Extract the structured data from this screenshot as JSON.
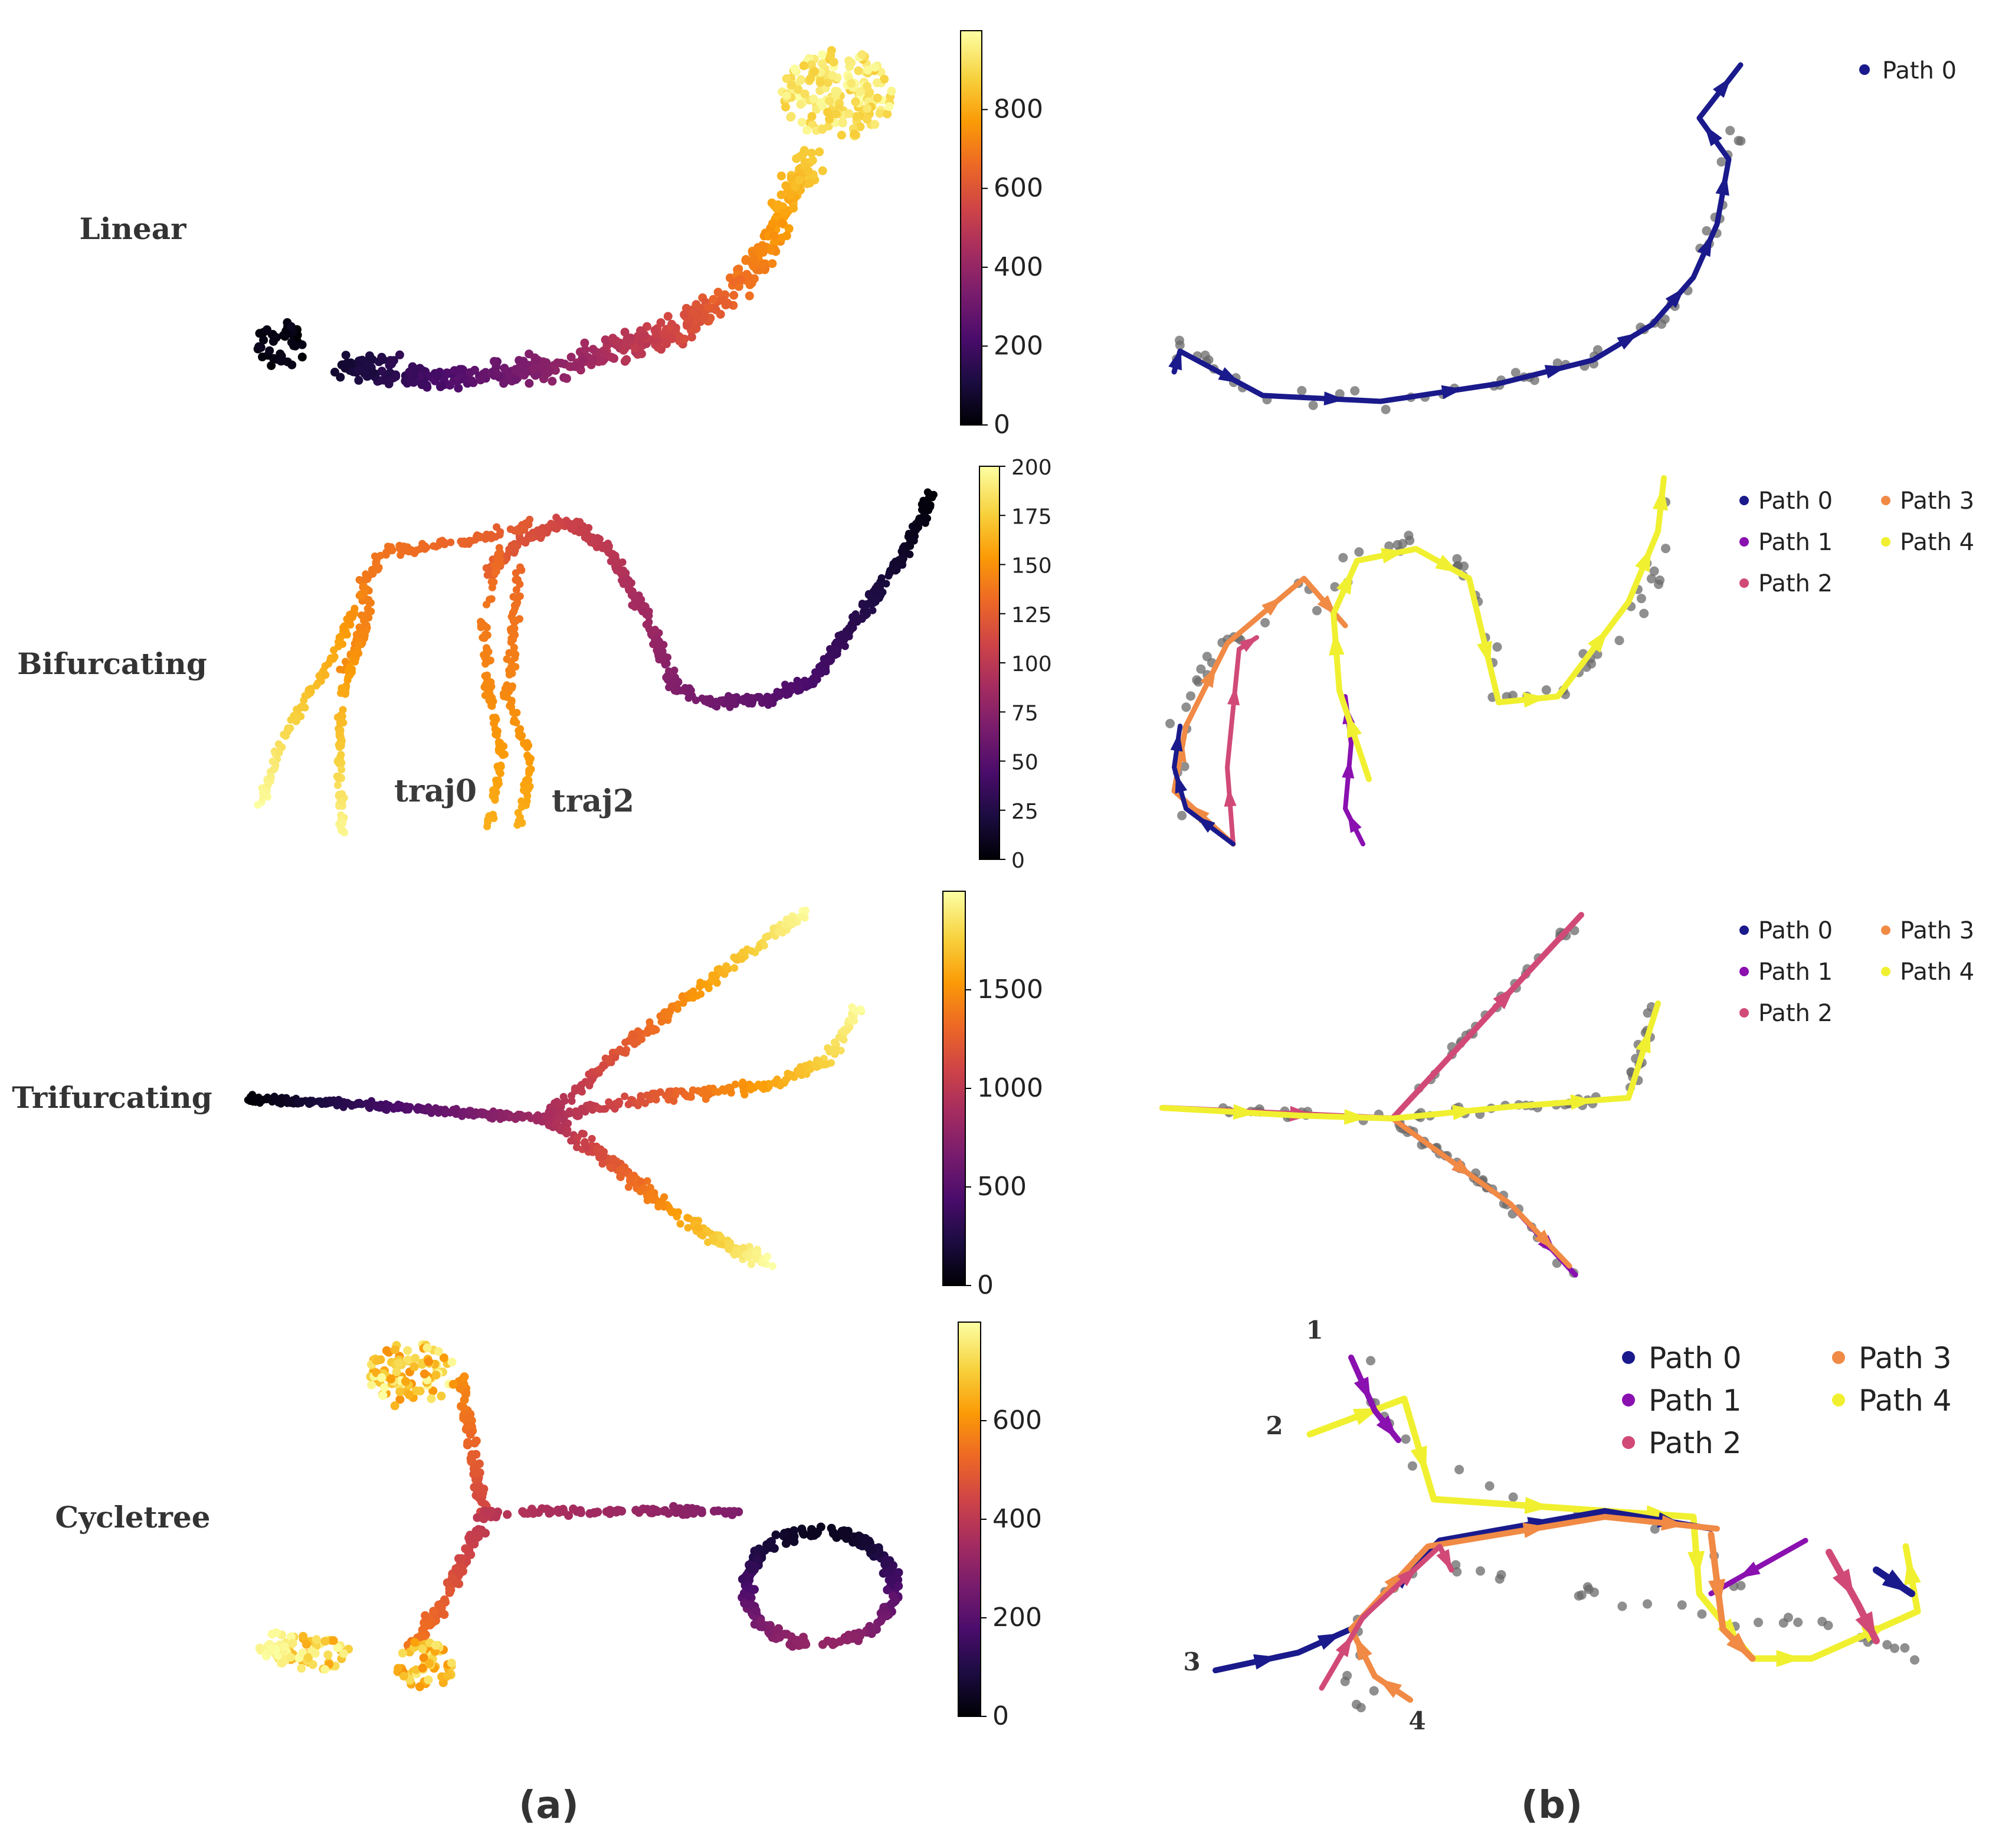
{
  "panel_labels": {
    "a": "(a)",
    "b": "(b)"
  },
  "colors": {
    "inferno": [
      "#000004",
      "#1b0c41",
      "#4a0c6b",
      "#781c6d",
      "#a52c60",
      "#cf4446",
      "#ed6925",
      "#fb9b06",
      "#f7d13d",
      "#fcffa4"
    ],
    "path0": "#1a1a8c",
    "path1": "#8a10b0",
    "path2": "#d14a77",
    "path3": "#f08a45",
    "path4": "#f0f030",
    "gray": "#6a6a6a"
  },
  "chart_data": [
    {
      "id": "linear",
      "type": "scatter",
      "row_label": "Linear",
      "colorbar": {
        "min": 0,
        "max": 1000,
        "ticks": [
          "0",
          "200",
          "400",
          "600",
          "800"
        ]
      },
      "legend": [
        "Path 0"
      ],
      "annotations": []
    },
    {
      "id": "bifurcating",
      "type": "scatter",
      "row_label": "Bifurcating",
      "colorbar": {
        "min": 0,
        "max": 200,
        "ticks": [
          "0",
          "25",
          "50",
          "75",
          "100",
          "125",
          "150",
          "175",
          "200"
        ]
      },
      "legend": [
        "Path 0",
        "Path 1",
        "Path 2",
        "Path 3",
        "Path 4"
      ],
      "annotations": [
        "traj0",
        "traj2"
      ]
    },
    {
      "id": "trifurcating",
      "type": "scatter",
      "row_label": "Trifurcating",
      "colorbar": {
        "min": 0,
        "max": 2000,
        "ticks": [
          "0",
          "500",
          "1000",
          "1500"
        ]
      },
      "legend": [
        "Path 0",
        "Path 1",
        "Path 2",
        "Path 3",
        "Path 4"
      ],
      "annotations": []
    },
    {
      "id": "cycletree",
      "type": "scatter",
      "row_label": "Cycletree",
      "colorbar": {
        "min": 0,
        "max": 800,
        "ticks": [
          "0",
          "200",
          "400",
          "600"
        ]
      },
      "legend": [
        "Path 0",
        "Path 1",
        "Path 2",
        "Path 3",
        "Path 4"
      ],
      "annotations": [
        "1",
        "2",
        "3",
        "4"
      ]
    }
  ]
}
